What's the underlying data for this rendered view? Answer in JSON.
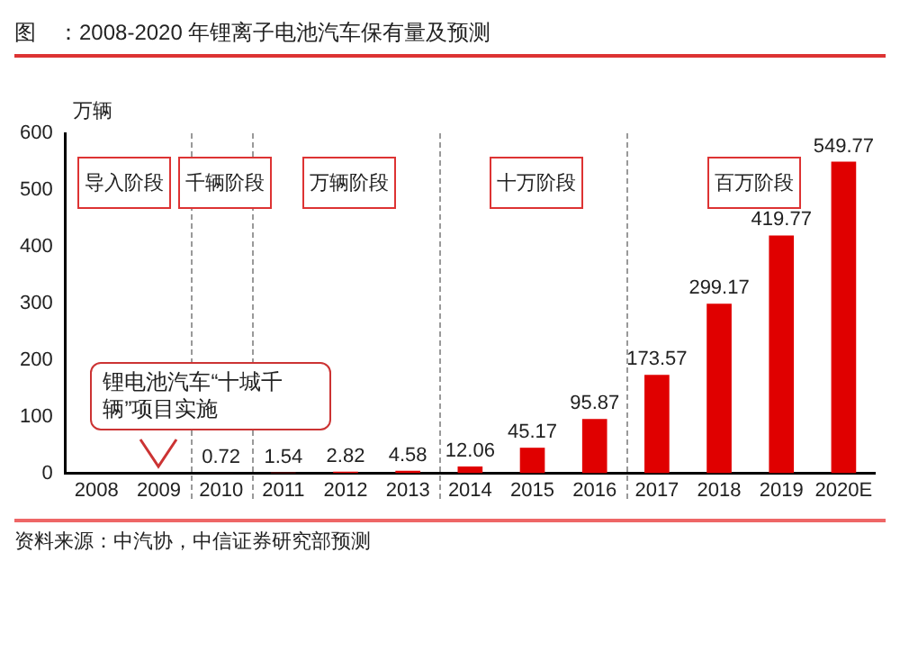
{
  "chart_data": {
    "type": "bar",
    "title": "图　：2008-2020 年锂离子电池汽车保有量及预测",
    "ylabel": "万辆",
    "categories": [
      "2008",
      "2009",
      "2010",
      "2011",
      "2012",
      "2013",
      "2014",
      "2015",
      "2016",
      "2017",
      "2018",
      "2019",
      "2020E"
    ],
    "values": [
      null,
      null,
      0.72,
      1.54,
      2.82,
      4.58,
      12.06,
      45.17,
      95.87,
      173.57,
      299.17,
      419.77,
      549.77
    ],
    "color": "#e00000",
    "ylim": [
      0,
      600
    ],
    "yticks": [
      0,
      100,
      200,
      300,
      400,
      500,
      600
    ],
    "grid": false,
    "legend": false,
    "data_labels": true,
    "annotations": [
      "导入阶段",
      "千辆阶段",
      "万辆阶段",
      "十万阶段",
      "百万阶段",
      "锂电池汽车“十城千辆”项目实施",
      "资料来源：中汽协，中信证券研究部预测"
    ]
  }
}
